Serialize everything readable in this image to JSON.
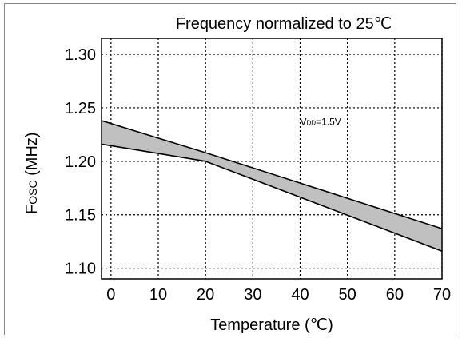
{
  "chart_data": {
    "type": "area",
    "title": "Frequency normalized to 25℃",
    "xlabel": "Temperature (℃)",
    "ylabel_main": "F",
    "ylabel_sub": "OSC",
    "ylabel_unit": " (MHz)",
    "xlim": [
      -2,
      70
    ],
    "ylim": [
      1.09,
      1.315
    ],
    "x_ticks": [
      0,
      10,
      20,
      30,
      40,
      50,
      60,
      70
    ],
    "y_ticks": [
      1.1,
      1.15,
      1.2,
      1.25,
      1.3
    ],
    "x_tick_labels": [
      "0",
      "10",
      "20",
      "30",
      "40",
      "50",
      "60",
      "70"
    ],
    "y_tick_labels": [
      "1.10",
      "1.15",
      "1.20",
      "1.25",
      "1.30"
    ],
    "grid": true,
    "annotation": {
      "text_main": "V",
      "text_sub": "DD",
      "text_rest": "=1.5V",
      "x": 40,
      "y": 1.234
    },
    "series": [
      {
        "role": "upper",
        "x": [
          -2,
          20,
          70
        ],
        "values": [
          1.238,
          1.208,
          1.137
        ]
      },
      {
        "role": "lower",
        "x": [
          -2,
          20,
          70
        ],
        "values": [
          1.216,
          1.2,
          1.116
        ]
      }
    ],
    "fill_color": "#c0c0c0",
    "line_color": "#000000"
  }
}
